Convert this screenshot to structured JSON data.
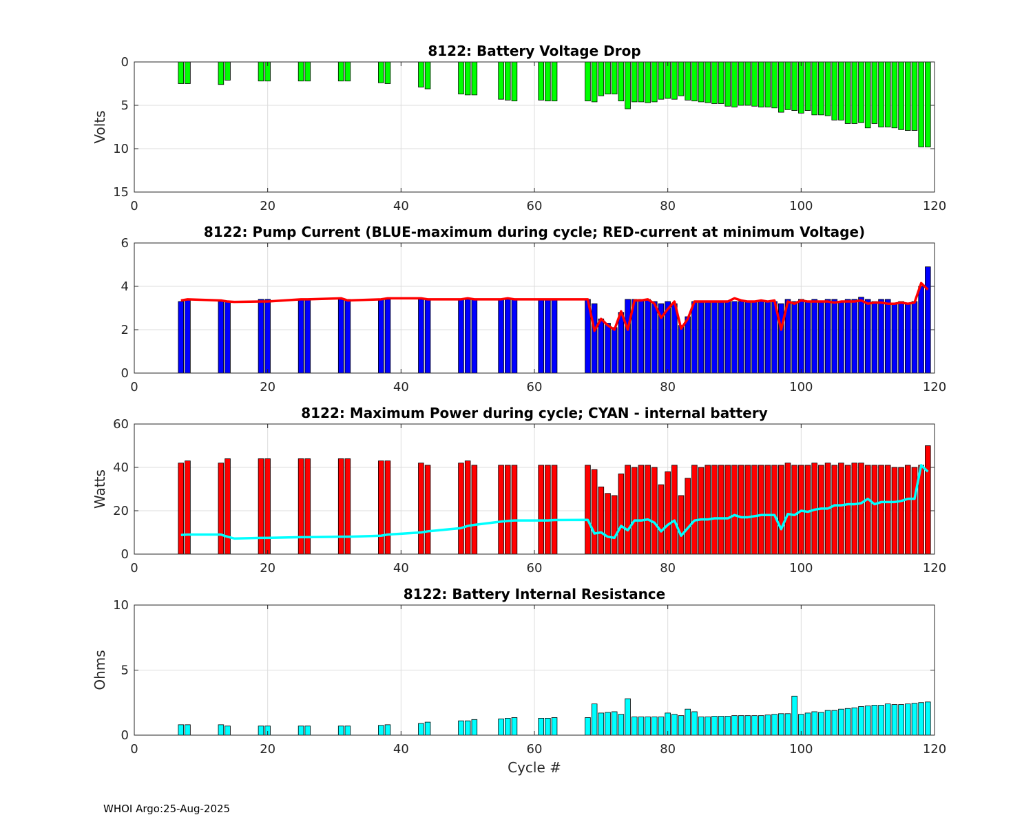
{
  "footer": "WHOI Argo:25-Aug-2025",
  "chart_data": [
    {
      "type": "bar",
      "title": "8122: Battery Voltage Drop",
      "xlabel": "",
      "ylabel": "Volts",
      "xlim": [
        0,
        120
      ],
      "ylim": [
        0,
        15
      ],
      "y_reversed": true,
      "xticks": [
        "0",
        "20",
        "40",
        "60",
        "80",
        "100",
        "120"
      ],
      "yticks": [
        "0",
        "5",
        "10",
        "15"
      ],
      "ytick_values": [
        0,
        5,
        10,
        15
      ],
      "grid": true,
      "bar_color": "#00ff00",
      "x": [
        7,
        8,
        13,
        14,
        19,
        20,
        25,
        26,
        31,
        32,
        37,
        38,
        43,
        44,
        49,
        50,
        51,
        55,
        56,
        57,
        61,
        62,
        63,
        68,
        69,
        70,
        71,
        72,
        73,
        74,
        75,
        76,
        77,
        78,
        79,
        80,
        81,
        82,
        83,
        84,
        85,
        86,
        87,
        88,
        89,
        90,
        91,
        92,
        93,
        94,
        95,
        96,
        97,
        98,
        99,
        100,
        101,
        102,
        103,
        104,
        105,
        106,
        107,
        108,
        109,
        110,
        111,
        112,
        113,
        114,
        115,
        116,
        117,
        118,
        119
      ],
      "values": [
        2.5,
        2.5,
        2.6,
        2.1,
        2.2,
        2.2,
        2.2,
        2.2,
        2.2,
        2.2,
        2.4,
        2.5,
        2.9,
        3.1,
        3.7,
        3.8,
        3.8,
        4.3,
        4.4,
        4.5,
        4.4,
        4.5,
        4.5,
        4.5,
        4.6,
        3.9,
        3.7,
        3.7,
        4.5,
        5.4,
        4.6,
        4.6,
        4.7,
        4.6,
        4.3,
        4.2,
        4.3,
        3.9,
        4.4,
        4.5,
        4.6,
        4.7,
        4.8,
        4.8,
        5.1,
        5.2,
        5.0,
        5.0,
        5.1,
        5.2,
        5.2,
        5.3,
        5.8,
        5.5,
        5.6,
        5.9,
        5.6,
        6.1,
        6.1,
        6.2,
        6.7,
        6.7,
        7.1,
        7.1,
        7.0,
        7.6,
        7.1,
        7.5,
        7.5,
        7.6,
        7.8,
        7.9,
        7.9,
        9.8,
        9.8
      ]
    },
    {
      "type": "bar",
      "title": "8122: Pump Current (BLUE-maximum during cycle; RED-current at minimum Voltage)",
      "xlabel": "",
      "ylabel": "",
      "xlim": [
        0,
        120
      ],
      "ylim": [
        0,
        6
      ],
      "xticks": [
        "0",
        "20",
        "40",
        "60",
        "80",
        "100",
        "120"
      ],
      "yticks": [
        "0",
        "2",
        "4",
        "6"
      ],
      "ytick_values": [
        0,
        2,
        4,
        6
      ],
      "grid": true,
      "bar_color": "#0000ff",
      "line_color": "#ff0000",
      "x": [
        7,
        8,
        13,
        14,
        19,
        20,
        25,
        26,
        31,
        32,
        37,
        38,
        43,
        44,
        49,
        50,
        51,
        55,
        56,
        57,
        61,
        62,
        63,
        68,
        69,
        70,
        71,
        72,
        73,
        74,
        75,
        76,
        77,
        78,
        79,
        80,
        81,
        82,
        83,
        84,
        85,
        86,
        87,
        88,
        89,
        90,
        91,
        92,
        93,
        94,
        95,
        96,
        97,
        98,
        99,
        100,
        101,
        102,
        103,
        104,
        105,
        106,
        107,
        108,
        109,
        110,
        111,
        112,
        113,
        114,
        115,
        116,
        117,
        118,
        119
      ],
      "values": [
        3.3,
        3.4,
        3.3,
        3.3,
        3.4,
        3.4,
        3.4,
        3.4,
        3.4,
        3.4,
        3.4,
        3.4,
        3.4,
        3.4,
        3.4,
        3.4,
        3.4,
        3.4,
        3.4,
        3.4,
        3.4,
        3.4,
        3.4,
        3.4,
        3.2,
        2.5,
        2.3,
        2.1,
        2.8,
        3.4,
        3.4,
        3.4,
        3.4,
        3.3,
        3.2,
        3.3,
        3.2,
        2.2,
        2.6,
        3.3,
        3.3,
        3.3,
        3.3,
        3.3,
        3.3,
        3.3,
        3.3,
        3.3,
        3.3,
        3.3,
        3.3,
        3.3,
        3.2,
        3.4,
        3.3,
        3.4,
        3.3,
        3.4,
        3.3,
        3.4,
        3.4,
        3.3,
        3.4,
        3.4,
        3.5,
        3.4,
        3.3,
        3.4,
        3.4,
        3.2,
        3.3,
        3.2,
        3.3,
        4.0,
        4.9
      ],
      "line_x": [
        7,
        8,
        13,
        14,
        15,
        19,
        20,
        25,
        26,
        31,
        32,
        37,
        38,
        43,
        44,
        49,
        50,
        51,
        55,
        56,
        57,
        61,
        62,
        63,
        68,
        69,
        70,
        71,
        72,
        73,
        74,
        75,
        76,
        77,
        78,
        79,
        80,
        81,
        82,
        83,
        84,
        85,
        86,
        87,
        88,
        89,
        90,
        91,
        92,
        93,
        94,
        95,
        96,
        97,
        98,
        99,
        100,
        101,
        102,
        103,
        104,
        105,
        106,
        107,
        108,
        109,
        110,
        111,
        112,
        113,
        114,
        115,
        116,
        117,
        118,
        119
      ],
      "line_values": [
        3.35,
        3.4,
        3.35,
        3.3,
        3.28,
        3.3,
        3.3,
        3.4,
        3.4,
        3.45,
        3.35,
        3.4,
        3.45,
        3.45,
        3.4,
        3.4,
        3.45,
        3.4,
        3.4,
        3.45,
        3.4,
        3.4,
        3.4,
        3.4,
        3.4,
        1.95,
        2.5,
        2.2,
        2.0,
        2.85,
        2.0,
        3.35,
        3.35,
        3.4,
        3.2,
        2.55,
        2.95,
        3.3,
        2.05,
        2.5,
        3.3,
        3.3,
        3.3,
        3.3,
        3.3,
        3.3,
        3.45,
        3.35,
        3.3,
        3.3,
        3.35,
        3.3,
        3.35,
        2.0,
        3.3,
        3.2,
        3.35,
        3.3,
        3.3,
        3.3,
        3.3,
        3.25,
        3.3,
        3.3,
        3.3,
        3.35,
        3.2,
        3.25,
        3.25,
        3.2,
        3.2,
        3.25,
        3.2,
        3.25,
        4.15,
        3.85
      ]
    },
    {
      "type": "bar",
      "title": "8122: Maximum Power during cycle; CYAN - internal battery",
      "xlabel": "",
      "ylabel": "Watts",
      "xlim": [
        0,
        120
      ],
      "ylim": [
        0,
        60
      ],
      "xticks": [
        "0",
        "20",
        "40",
        "60",
        "80",
        "100",
        "120"
      ],
      "yticks": [
        "0",
        "20",
        "40",
        "60"
      ],
      "ytick_values": [
        0,
        20,
        40,
        60
      ],
      "grid": true,
      "bar_color": "#ff0000",
      "line_color": "#00ffff",
      "x": [
        7,
        8,
        13,
        14,
        19,
        20,
        25,
        26,
        31,
        32,
        37,
        38,
        43,
        44,
        49,
        50,
        51,
        55,
        56,
        57,
        61,
        62,
        63,
        68,
        69,
        70,
        71,
        72,
        73,
        74,
        75,
        76,
        77,
        78,
        79,
        80,
        81,
        82,
        83,
        84,
        85,
        86,
        87,
        88,
        89,
        90,
        91,
        92,
        93,
        94,
        95,
        96,
        97,
        98,
        99,
        100,
        101,
        102,
        103,
        104,
        105,
        106,
        107,
        108,
        109,
        110,
        111,
        112,
        113,
        114,
        115,
        116,
        117,
        118,
        119
      ],
      "values": [
        42,
        43,
        42,
        44,
        44,
        44,
        44,
        44,
        44,
        44,
        43,
        43,
        42,
        41,
        42,
        43,
        41,
        41,
        41,
        41,
        41,
        41,
        41,
        41,
        39,
        31,
        28,
        27,
        37,
        41,
        40,
        41,
        41,
        40,
        32,
        38,
        41,
        27,
        35,
        41,
        40,
        41,
        41,
        41,
        41,
        41,
        41,
        41,
        41,
        41,
        41,
        41,
        41,
        42,
        41,
        41,
        41,
        42,
        41,
        42,
        41,
        42,
        41,
        42,
        42,
        41,
        41,
        41,
        41,
        40,
        40,
        41,
        40,
        41,
        50
      ],
      "line_x": [
        7,
        8,
        13,
        14,
        15,
        19,
        20,
        25,
        26,
        31,
        32,
        37,
        38,
        43,
        44,
        49,
        50,
        51,
        55,
        56,
        57,
        61,
        62,
        63,
        68,
        69,
        70,
        71,
        72,
        73,
        74,
        75,
        76,
        77,
        78,
        79,
        80,
        81,
        82,
        83,
        84,
        85,
        86,
        87,
        88,
        89,
        90,
        91,
        92,
        93,
        94,
        95,
        96,
        97,
        98,
        99,
        100,
        101,
        102,
        103,
        104,
        105,
        106,
        107,
        108,
        109,
        110,
        111,
        112,
        113,
        114,
        115,
        116,
        117,
        118,
        119
      ],
      "line_values": [
        8.8,
        9,
        9,
        8,
        7.2,
        7.5,
        7.5,
        7.8,
        7.8,
        8,
        8,
        8.5,
        9,
        10,
        10.5,
        12,
        13,
        13.5,
        15,
        15.3,
        15.5,
        15.5,
        15.5,
        15.7,
        15.8,
        9.5,
        10,
        8,
        7.5,
        13,
        11,
        15.5,
        15.5,
        16,
        14.5,
        10.5,
        13.5,
        15.5,
        8.5,
        12,
        15.5,
        16,
        16,
        16.5,
        16.5,
        16.5,
        18,
        17,
        17,
        17.5,
        18,
        18,
        18,
        11.5,
        18.5,
        18,
        20,
        19.5,
        20.5,
        21,
        21,
        22.5,
        22.5,
        23,
        23,
        23.5,
        25.5,
        23,
        24,
        24,
        24,
        24.5,
        25.5,
        25.5,
        41,
        38
      ]
    },
    {
      "type": "bar",
      "title": "8122: Battery Internal Resistance",
      "xlabel": "Cycle #",
      "ylabel": "Ohms",
      "xlim": [
        0,
        120
      ],
      "ylim": [
        0,
        10
      ],
      "xticks": [
        "0",
        "20",
        "40",
        "60",
        "80",
        "100",
        "120"
      ],
      "yticks": [
        "0",
        "5",
        "10"
      ],
      "ytick_values": [
        0,
        5,
        10
      ],
      "grid": true,
      "bar_color": "#00ffff",
      "x": [
        7,
        8,
        13,
        14,
        19,
        20,
        25,
        26,
        31,
        32,
        37,
        38,
        43,
        44,
        49,
        50,
        51,
        55,
        56,
        57,
        61,
        62,
        63,
        68,
        69,
        70,
        71,
        72,
        73,
        74,
        75,
        76,
        77,
        78,
        79,
        80,
        81,
        82,
        83,
        84,
        85,
        86,
        87,
        88,
        89,
        90,
        91,
        92,
        93,
        94,
        95,
        96,
        97,
        98,
        99,
        100,
        101,
        102,
        103,
        104,
        105,
        106,
        107,
        108,
        109,
        110,
        111,
        112,
        113,
        114,
        115,
        116,
        117,
        118,
        119
      ],
      "values": [
        0.8,
        0.8,
        0.8,
        0.7,
        0.7,
        0.7,
        0.7,
        0.7,
        0.7,
        0.7,
        0.75,
        0.8,
        0.9,
        1.0,
        1.1,
        1.1,
        1.2,
        1.25,
        1.3,
        1.35,
        1.3,
        1.3,
        1.35,
        1.35,
        2.4,
        1.7,
        1.75,
        1.8,
        1.6,
        2.8,
        1.4,
        1.4,
        1.4,
        1.4,
        1.4,
        1.7,
        1.6,
        1.5,
        2.0,
        1.8,
        1.4,
        1.4,
        1.45,
        1.45,
        1.45,
        1.5,
        1.5,
        1.5,
        1.5,
        1.5,
        1.55,
        1.6,
        1.65,
        1.65,
        3.0,
        1.6,
        1.7,
        1.8,
        1.75,
        1.9,
        1.9,
        2.0,
        2.05,
        2.1,
        2.2,
        2.25,
        2.3,
        2.3,
        2.4,
        2.35,
        2.35,
        2.4,
        2.45,
        2.5,
        2.55
      ]
    }
  ]
}
